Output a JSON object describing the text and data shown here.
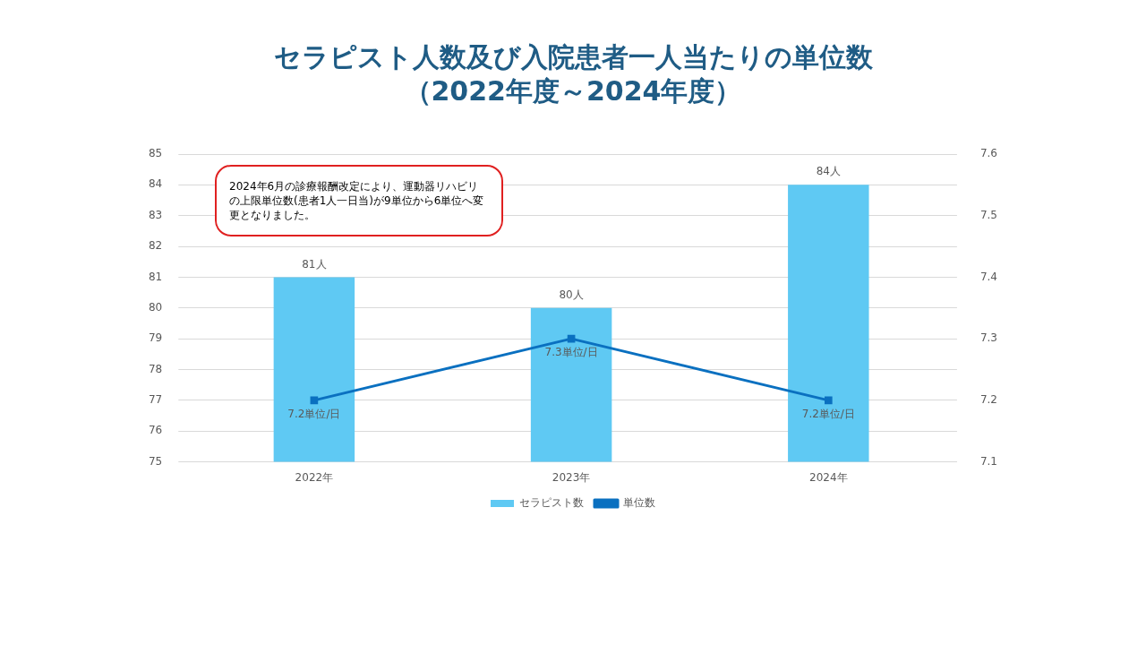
{
  "chart_data": {
    "type": "bar",
    "title": "セラピスト人数及び入院患者一人当たりの単位数",
    "subtitle": "（2022年度～2024年度）",
    "categories": [
      "2022年",
      "2023年",
      "2024年"
    ],
    "series": [
      {
        "name": "セラピスト数",
        "color": "#5fc9f3",
        "values": [
          81,
          80,
          84
        ],
        "value_labels": [
          "81人",
          "80人",
          "84人"
        ]
      },
      {
        "name": "単位数",
        "type": "line",
        "axis": "y2",
        "color": "#0a70c0",
        "values": [
          7.2,
          7.3,
          7.2
        ],
        "value_labels": [
          "7.2単位/日",
          "7.3単位/日",
          "7.2単位/日"
        ]
      }
    ],
    "ylim": [
      75,
      85
    ],
    "yticks": [
      75,
      76,
      77,
      78,
      79,
      80,
      81,
      82,
      83,
      84,
      85
    ],
    "y2lim": [
      7.1,
      7.6
    ],
    "y2ticks": [
      7.1,
      7.2,
      7.3,
      7.4,
      7.5,
      7.6
    ],
    "grid": "y",
    "legend": "bottom",
    "marker": "square",
    "line_style": "solid",
    "annotations": [
      "2024年6月の診療報酬改定により、運動器リハビリの上限単位数(患者1人一日当)が9単位から6単位へ変更となりました。"
    ]
  }
}
